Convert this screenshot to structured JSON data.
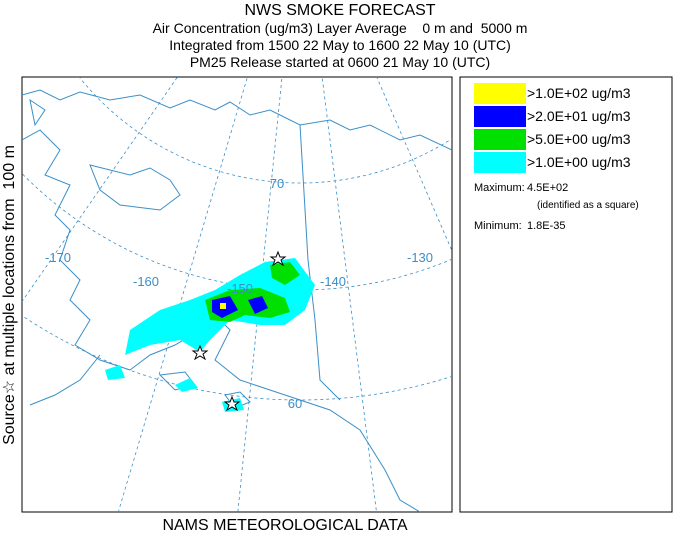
{
  "header": {
    "title": "NWS SMOKE FORECAST",
    "lines": [
      "Air Concentration (ug/m3) Layer Average    0 m and  5000 m",
      "Integrated from 1500 22 May to 1600 22 May 10 (UTC)",
      "PM25 Release started at 0600 21 May 10 (UTC)"
    ]
  },
  "side_label": "Source☆ at multiple locations from  100 m",
  "footer": "NAMS METEOROLOGICAL DATA",
  "map": {
    "labels": [
      "-170",
      "-160",
      "-150",
      "-140",
      "-130",
      "70",
      "60"
    ]
  },
  "legend": {
    "entries": [
      {
        "label": ">1.0E+02 ug/m3",
        "color": "#ffff00"
      },
      {
        "label": ">2.0E+01 ug/m3",
        "color": "#0000ff"
      },
      {
        "label": ">5.0E+00 ug/m3",
        "color": "#00e000"
      },
      {
        "label": ">1.0E+00 ug/m3",
        "color": "#00ffff"
      }
    ],
    "maximum_label": "Maximum:",
    "maximum": "4.5E+02",
    "maximum_note": "(identified as a square)",
    "minimum_label": "Minimum:",
    "minimum": "1.8E-35"
  }
}
